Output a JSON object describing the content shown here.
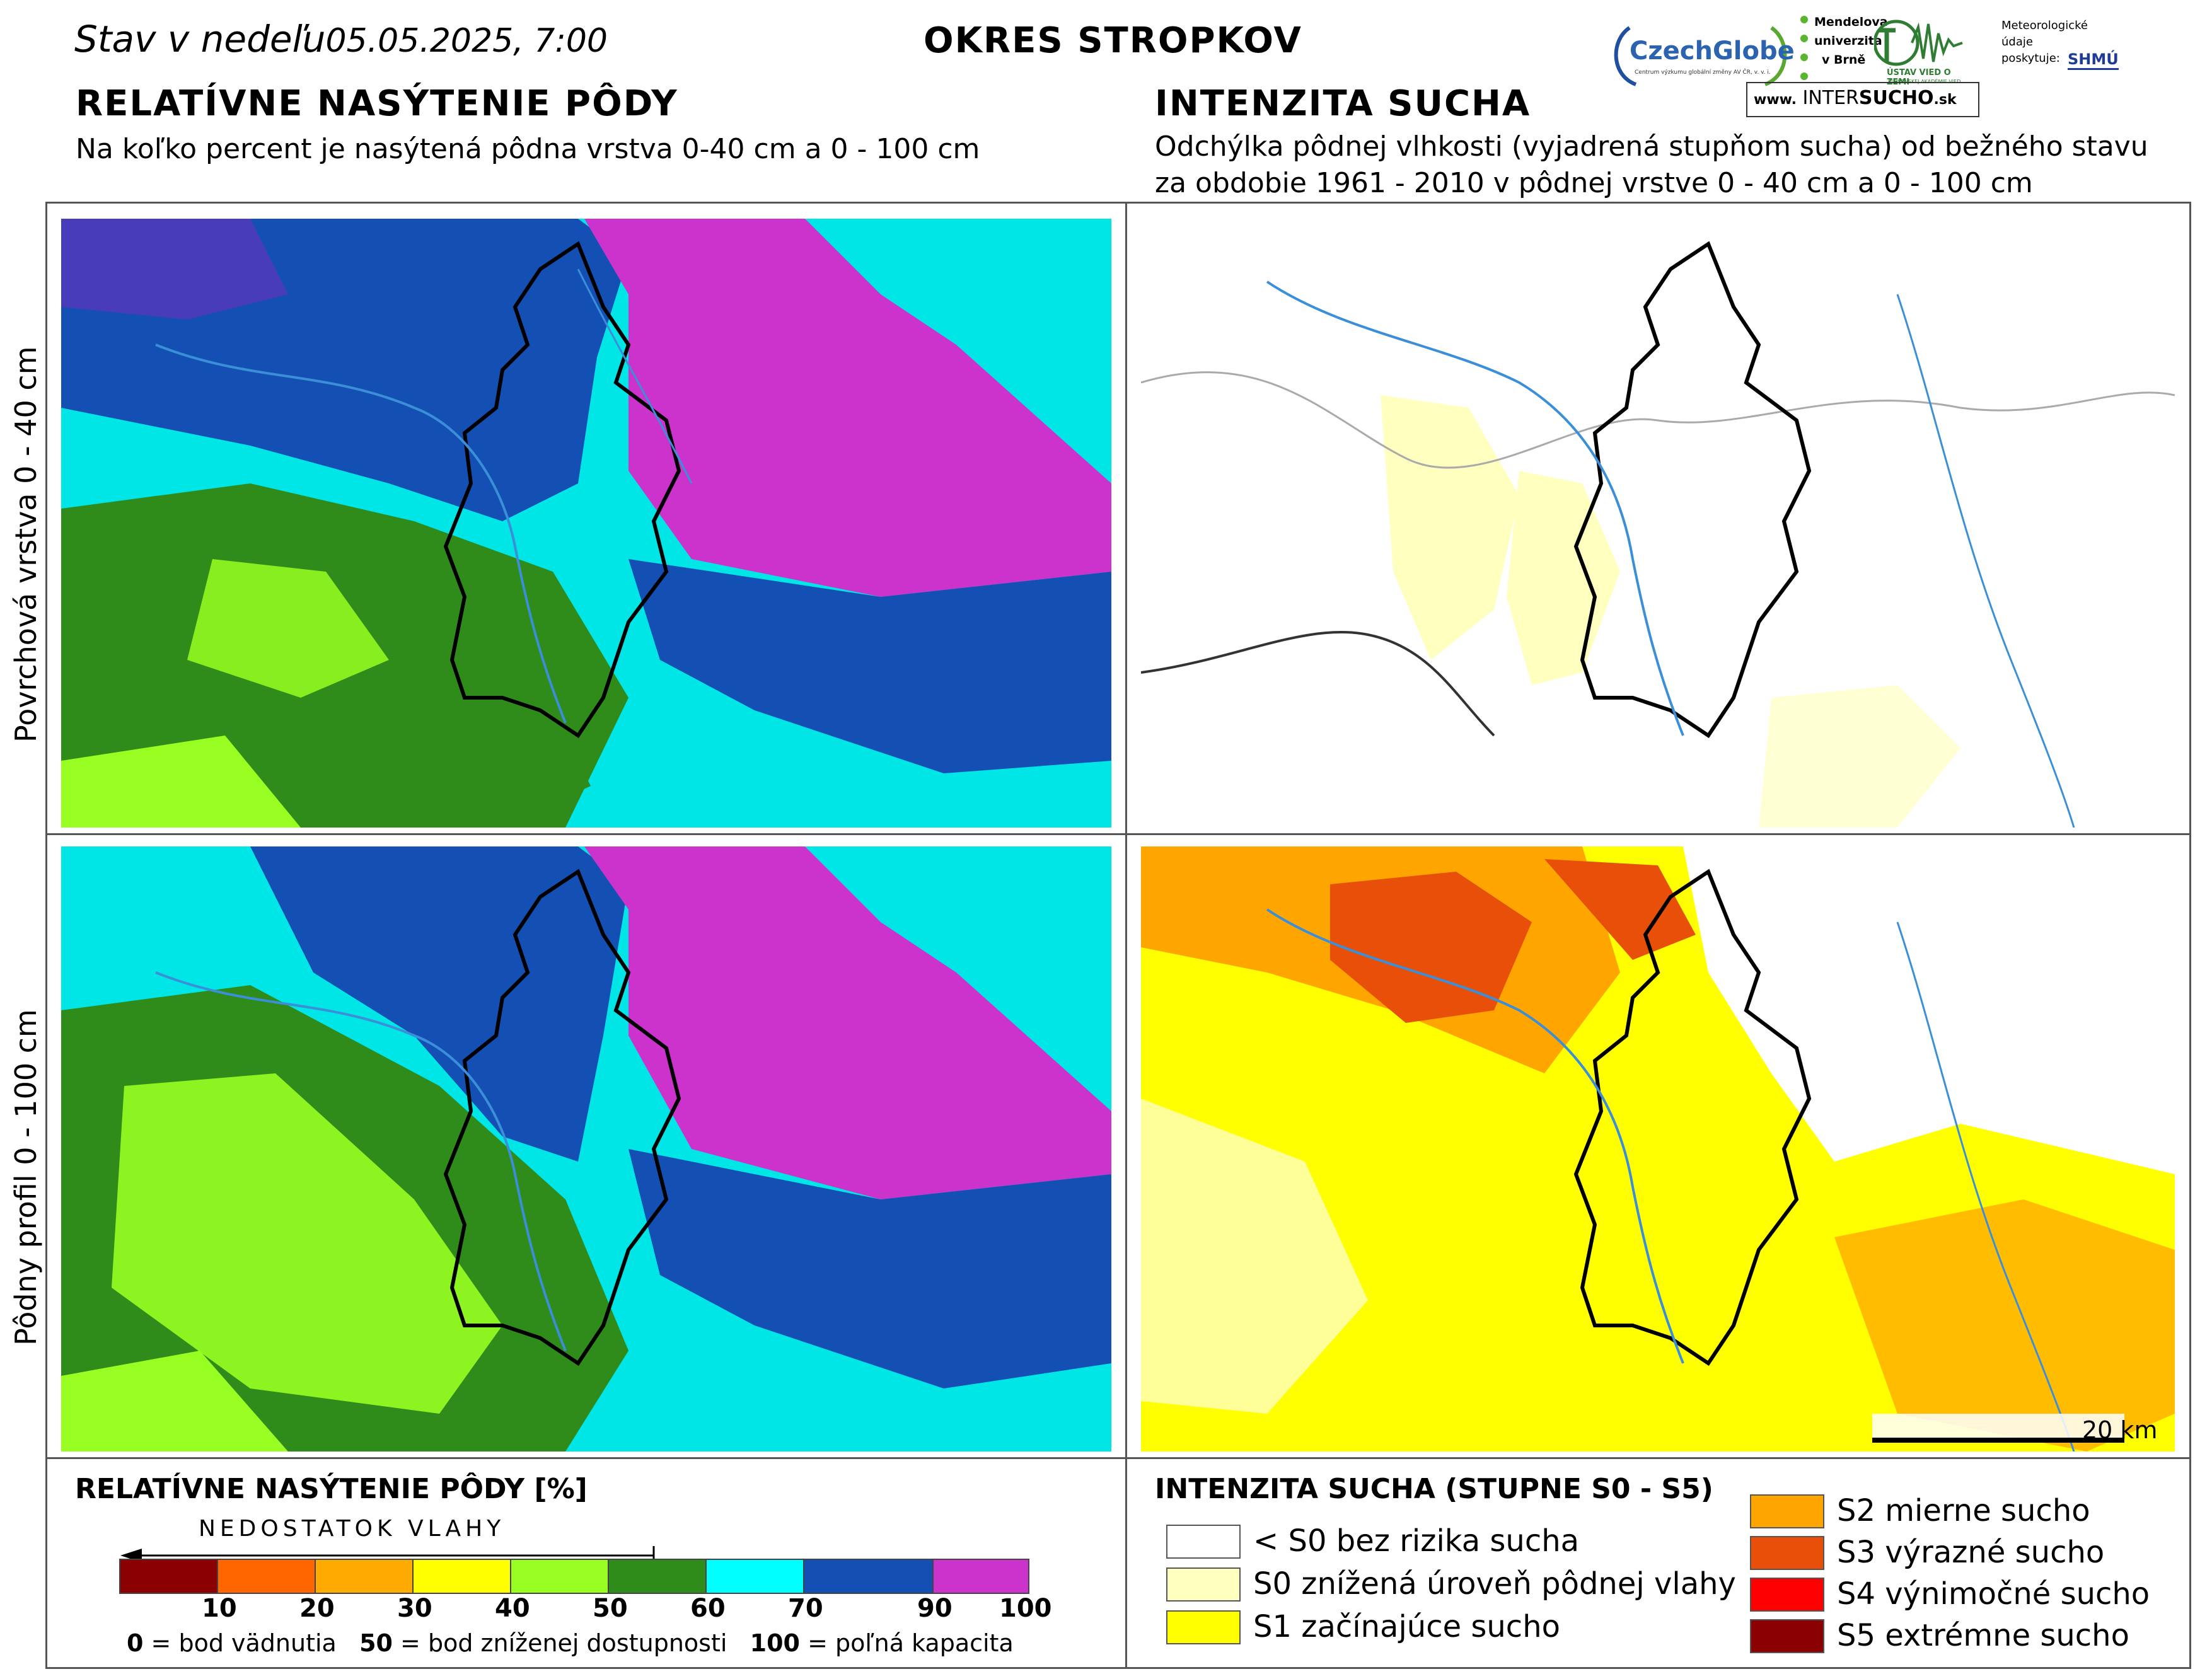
{
  "header": {
    "date_prefix": "Stav v nedeľu",
    "date_value": "05.05.2025, 7:00",
    "district": "OKRES  STROPKOV"
  },
  "logos": {
    "czechglobe": "CzechGlobe",
    "czechglobe_small": "Centrum výzkumu globální změny AV ČR, v. v. i.",
    "mendelu_lines": [
      "Mendelova",
      "univerzita",
      "v Brně"
    ],
    "uvz": "ÚSTAV VIED O ZEMI",
    "uvz_small": "SLOVENSKEJ AKADÉMIE VIED",
    "meteo_lines": [
      "Meteorologické",
      "údaje",
      "poskytuje:"
    ],
    "shmu": "SHMÚ",
    "intersucho_prefix": "www.",
    "intersucho_inter": "INTER",
    "intersucho_sucho": "SUCHO",
    "intersucho_suffix": ".sk"
  },
  "left_section": {
    "title": "RELATÍVNE NASÝTENIE PÔDY",
    "subtitle": "Na koľko percent je nasýtená pôdna vrstva 0-40 cm a 0 - 100 cm"
  },
  "right_section": {
    "title": "INTENZITA SUCHA",
    "subtitle_line1": "Odchýlka pôdnej vlhkosti (vyjadrená stupňom sucha) od bežného stavu",
    "subtitle_line2": "za obdobie 1961 - 2010 v pôdnej vrstve 0 - 40 cm a 0 - 100 cm"
  },
  "row_labels": {
    "top": "Povrchová vrstva 0 - 40 cm",
    "bottom": "Pôdny profil 0 - 100 cm"
  },
  "scale_bar_label": "20 km",
  "saturation_legend": {
    "title": "RELATÍVNE NASÝTENIE PÔDY [%]",
    "deficit_label": "NEDOSTATOK VLAHY",
    "classes": [
      {
        "color": "#8b0000"
      },
      {
        "color": "#ff6600"
      },
      {
        "color": "#ffaa00"
      },
      {
        "color": "#ffff00"
      },
      {
        "color": "#99ff22"
      },
      {
        "color": "#2f8b1a"
      },
      {
        "color": "#00ffff"
      },
      {
        "color": "#1450b4"
      },
      {
        "color": "#cc33cc"
      }
    ],
    "ticks": [
      "10",
      "20",
      "30",
      "40",
      "50",
      "60",
      "70",
      "90",
      "100"
    ],
    "note_0_num": "0",
    "note_0_text": " = bod vädnutia",
    "note_50_num": "50",
    "note_50_text": " = bod zníženej dostupnosti",
    "note_100_num": "100",
    "note_100_text": " = poľná kapacita"
  },
  "drought_legend": {
    "title": "INTENZITA SUCHA (STUPNE S0 - S5)",
    "items": [
      {
        "label": "< S0 bez rizika sucha",
        "color": "#ffffff"
      },
      {
        "label": "S0 znížená úroveň pôdnej vlahy",
        "color": "#ffffc0"
      },
      {
        "label": "S1 začínajúce sucho",
        "color": "#ffff00"
      },
      {
        "label": "S2 mierne sucho",
        "color": "#ffa500"
      },
      {
        "label": "S3 výrazné sucho",
        "color": "#e8500a"
      },
      {
        "label": "S4 výnimočné sucho",
        "color": "#ff0000"
      },
      {
        "label": "S5 extrémne sucho",
        "color": "#8b0000"
      }
    ]
  }
}
